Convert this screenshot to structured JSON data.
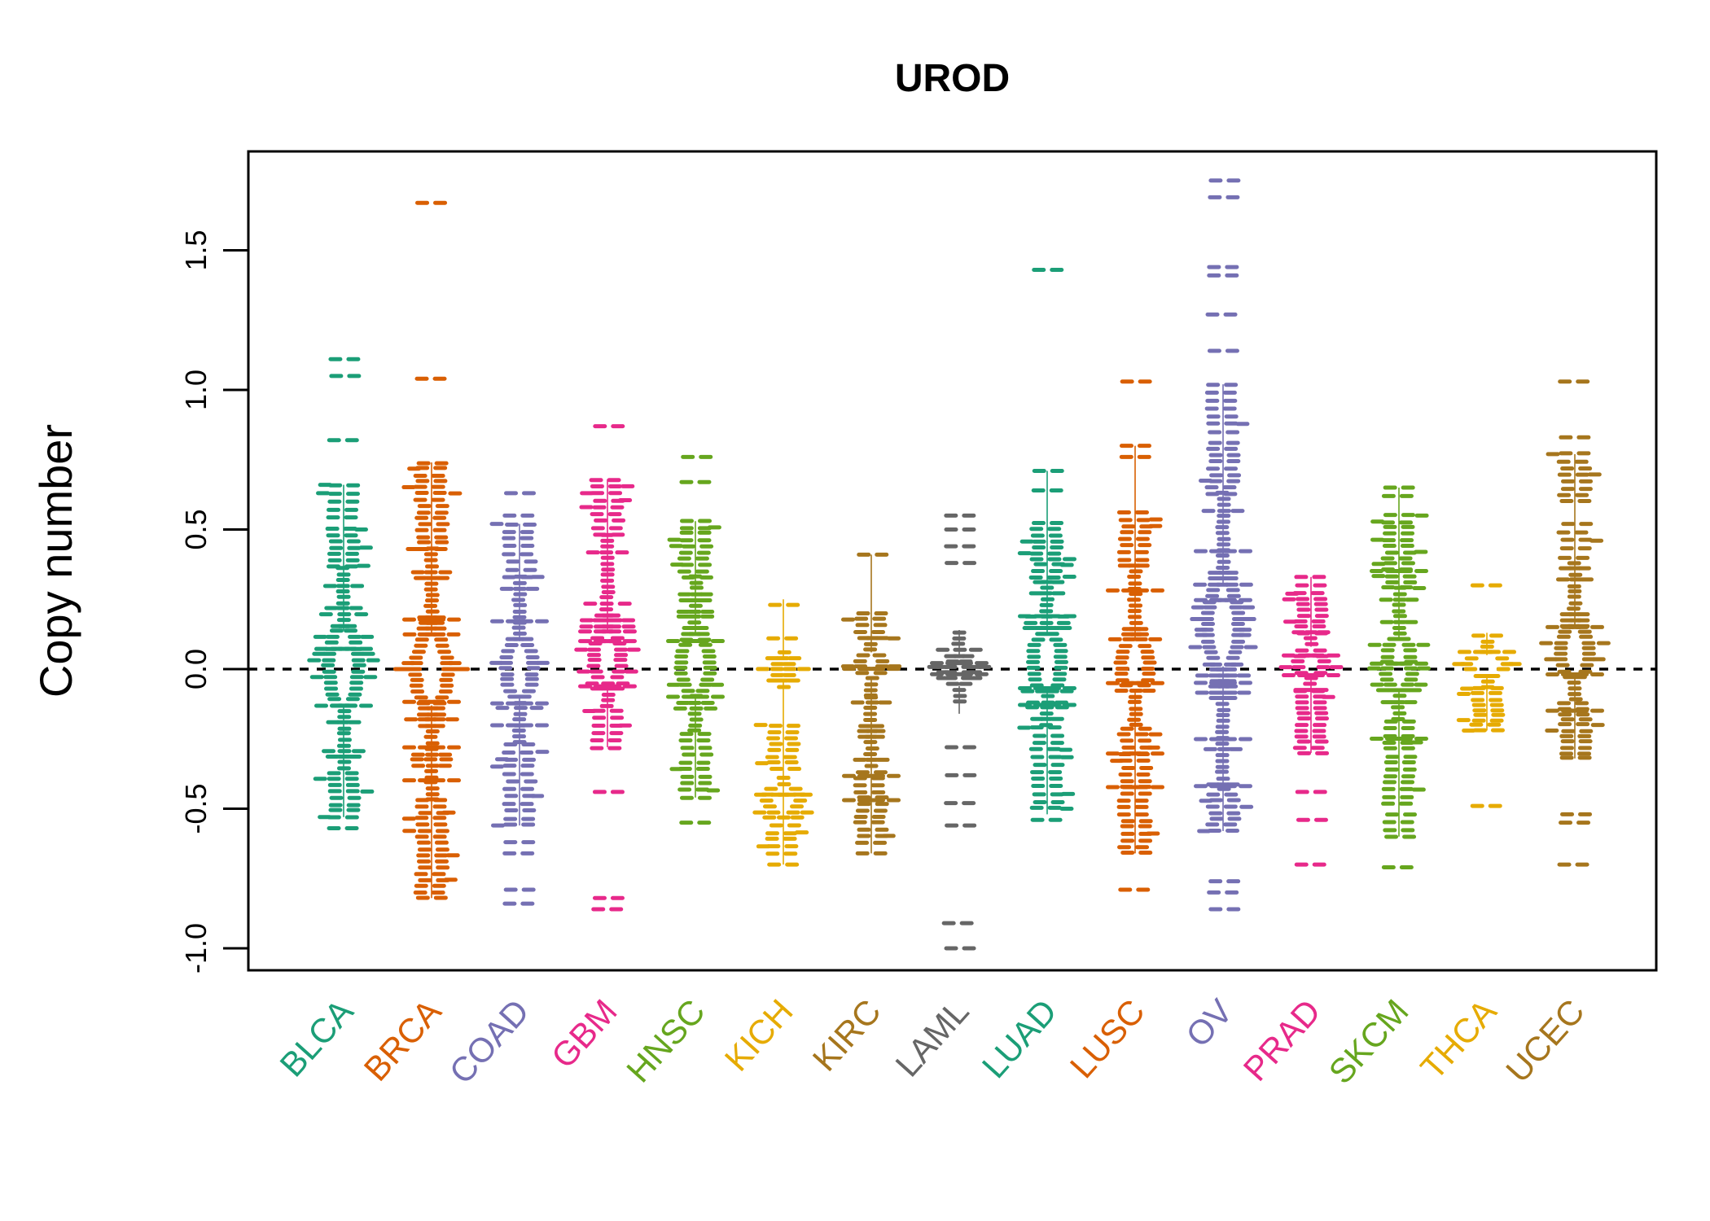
{
  "title": "UROD",
  "chart_data": {
    "type": "beeswarm",
    "title": "UROD",
    "ylabel": "Copy number",
    "xlabel": "",
    "grid": false,
    "legend": "none",
    "baseline": 0.0,
    "baseline_style": "dashed-black",
    "ylim": [
      -1.08,
      1.85
    ],
    "yticks": [
      {
        "value": -1.0,
        "label": "-1.0"
      },
      {
        "value": -0.5,
        "label": "-0.5"
      },
      {
        "value": 0.0,
        "label": "0.0"
      },
      {
        "value": 0.5,
        "label": "0.5"
      },
      {
        "value": 1.0,
        "label": "1.0"
      },
      {
        "value": 1.5,
        "label": "1.5"
      }
    ],
    "marker": "horizontal-dash",
    "palette_note": "Dark2 8-color palette recycled across 15 cohorts",
    "categories": [
      "BLCA",
      "BRCA",
      "COAD",
      "GBM",
      "HNSC",
      "KICH",
      "KIRC",
      "LAML",
      "LUAD",
      "LUSC",
      "OV",
      "PRAD",
      "SKCM",
      "THCA",
      "UCEC"
    ],
    "series": [
      {
        "label": "BLCA",
        "color": "#1B9E77",
        "outliers": [
          1.11,
          1.05,
          0.82,
          -0.57
        ],
        "tails": [
          [
            0.66,
            0.54,
            5
          ],
          [
            0.5,
            0.37,
            7
          ],
          [
            -0.37,
            -0.53,
            8
          ]
        ],
        "cores": [
          {
            "top": 0.36,
            "bottom": -0.36,
            "peak": 0.03,
            "maxW": 26,
            "lensTop": 0.14,
            "lensBottom": -0.13,
            "lensW": 14
          }
        ],
        "wideRows": [
          [
            0.07,
            42
          ],
          [
            -0.13,
            34
          ]
        ],
        "stem": [
          0.66,
          -0.53
        ]
      },
      {
        "label": "BRCA",
        "color": "#D95F02",
        "outliers": [
          1.67,
          1.04
        ],
        "tails": [
          [
            0.74,
            0.43,
            15
          ],
          [
            -0.47,
            -0.82,
            17
          ]
        ],
        "cores": [
          {
            "top": 0.43,
            "bottom": -0.47,
            "peak": 0.01,
            "maxW": 30,
            "lensTop": 0.12,
            "lensBottom": -0.13,
            "lensW": 15
          }
        ],
        "wideRows": [
          [
            0.18,
            40
          ],
          [
            -0.12,
            44
          ],
          [
            -0.28,
            40
          ],
          [
            -0.4,
            38
          ]
        ],
        "stem": [
          0.74,
          -0.82
        ]
      },
      {
        "label": "COAD",
        "color": "#7570B3",
        "outliers": [
          0.63,
          0.55,
          -0.62,
          -0.66,
          -0.79,
          -0.84
        ],
        "tails": [
          [
            0.52,
            0.33,
            8
          ],
          [
            -0.27,
            -0.56,
            12
          ]
        ],
        "cores": [
          {
            "top": 0.33,
            "bottom": -0.27,
            "peak": 0.0,
            "maxW": 22,
            "lensTop": 0.1,
            "lensBottom": -0.1,
            "lensW": 12
          }
        ],
        "wideRows": [
          [
            0.17,
            34
          ],
          [
            -0.12,
            36
          ],
          [
            -0.2,
            30
          ]
        ],
        "stem": [
          0.52,
          -0.56
        ]
      },
      {
        "label": "GBM",
        "color": "#E7298A",
        "outliers": [
          0.87,
          -0.44,
          -0.82,
          -0.86
        ],
        "tails": [
          [
            0.68,
            0.48,
            9
          ],
          [
            -0.15,
            -0.28,
            6
          ]
        ],
        "cores": [
          {
            "top": 0.48,
            "bottom": -0.15,
            "peak": 0.04,
            "maxW": 24,
            "lensTop": 0.13,
            "lensBottom": -0.05,
            "lensW": 13
          }
        ],
        "wideRows": [
          [
            0.1,
            36
          ],
          [
            -0.06,
            32
          ]
        ],
        "stem": [
          0.68,
          -0.28
        ]
      },
      {
        "label": "HNSC",
        "color": "#66A61E",
        "outliers": [
          0.76,
          0.67,
          -0.55
        ],
        "tails": [
          [
            0.53,
            0.33,
            10
          ],
          [
            -0.23,
            -0.46,
            10
          ]
        ],
        "cores": [
          {
            "top": 0.33,
            "bottom": -0.23,
            "peak": 0.03,
            "maxW": 26,
            "lensTop": 0.12,
            "lensBottom": -0.09,
            "lensW": 13
          }
        ],
        "wideRows": [
          [
            0.1,
            44
          ],
          [
            -0.1,
            38
          ]
        ],
        "stem": [
          0.53,
          -0.46
        ]
      },
      {
        "label": "KICH",
        "color": "#E6AB02",
        "outliers": [
          0.23,
          0.11,
          -0.7
        ],
        "tails": [
          [
            -0.2,
            -0.36,
            8
          ],
          [
            -0.56,
            -0.66,
            5
          ]
        ],
        "cores": [
          {
            "top": 0.06,
            "bottom": -0.07,
            "peak": 0.0,
            "maxW": 10,
            "lensTop": 0.04,
            "lensBottom": -0.04,
            "lensW": 5
          },
          {
            "top": -0.39,
            "bottom": -0.55,
            "peak": -0.46,
            "maxW": 24,
            "lensTop": -0.41,
            "lensBottom": -0.52,
            "lensW": 16
          }
        ],
        "wideRows": [
          [
            -0.45,
            28
          ]
        ],
        "stem": [
          0.25,
          -0.7
        ]
      },
      {
        "label": "KIRC",
        "color": "#A6761D",
        "outliers": [
          0.41,
          -0.66
        ],
        "tails": [
          [
            0.2,
            0.11,
            5
          ],
          [
            -0.37,
            -0.62,
            12
          ]
        ],
        "cores": [
          {
            "top": 0.11,
            "bottom": -0.1,
            "peak": 0.02,
            "maxW": 18,
            "lensTop": 0.06,
            "lensBottom": -0.03,
            "lensW": 10
          },
          {
            "top": -0.1,
            "bottom": -0.36,
            "peak": -0.22,
            "maxW": 14,
            "lensTop": 0,
            "lensBottom": 0,
            "lensW": 0
          }
        ],
        "wideRows": [
          [
            0.0,
            40
          ],
          [
            -0.38,
            42
          ],
          [
            -0.47,
            30
          ]
        ],
        "stem": [
          0.41,
          -0.66
        ]
      },
      {
        "label": "LAML",
        "color": "#666666",
        "outliers": [
          0.55,
          0.5,
          0.44,
          0.38,
          -0.28,
          -0.38,
          -0.48,
          -0.56,
          -0.91,
          -1.0
        ],
        "tails": [],
        "cores": [
          {
            "top": 0.13,
            "bottom": -0.13,
            "peak": -0.01,
            "maxW": 30,
            "lensTop": 0.04,
            "lensBottom": -0.06,
            "lensW": 7
          }
        ],
        "wideRows": [
          [
            -0.02,
            44
          ],
          [
            0.02,
            36
          ]
        ],
        "stem": [
          0.14,
          -0.16
        ]
      },
      {
        "label": "LUAD",
        "color": "#1B9E77",
        "outliers": [
          1.43,
          0.71,
          0.64,
          -0.54
        ],
        "tails": [
          [
            0.52,
            0.31,
            11
          ],
          [
            -0.21,
            -0.5,
            12
          ]
        ],
        "cores": [
          {
            "top": 0.31,
            "bottom": -0.21,
            "peak": 0.04,
            "maxW": 25,
            "lensTop": 0.13,
            "lensBottom": -0.08,
            "lensW": 13
          }
        ],
        "wideRows": [
          [
            0.19,
            38
          ],
          [
            -0.07,
            40
          ],
          [
            -0.13,
            34
          ]
        ],
        "stem": [
          0.71,
          -0.52
        ]
      },
      {
        "label": "LUSC",
        "color": "#D95F02",
        "outliers": [
          1.03,
          0.8,
          0.76,
          -0.79
        ],
        "tails": [
          [
            0.56,
            0.37,
            9
          ],
          [
            -0.21,
            -0.66,
            20
          ]
        ],
        "cores": [
          {
            "top": 0.37,
            "bottom": -0.21,
            "peak": 0.02,
            "maxW": 25,
            "lensTop": 0.11,
            "lensBottom": -0.08,
            "lensW": 13
          }
        ],
        "wideRows": [
          [
            0.28,
            36
          ],
          [
            -0.05,
            40
          ],
          [
            -0.3,
            36
          ],
          [
            -0.42,
            40
          ]
        ],
        "stem": [
          0.8,
          -0.66
        ]
      },
      {
        "label": "OV",
        "color": "#7570B3",
        "outliers": [
          1.75,
          1.69,
          1.44,
          1.41,
          1.27,
          1.14,
          -0.76,
          -0.8,
          -0.86
        ],
        "tails": [
          [
            1.02,
            0.85,
            7
          ],
          [
            0.81,
            0.63,
            9
          ],
          [
            -0.45,
            -0.58,
            7
          ]
        ],
        "cores": [
          {
            "top": 0.63,
            "bottom": -0.44,
            "peak": 0.14,
            "maxW": 30,
            "lensTop": 0.3,
            "lensBottom": 0.01,
            "lensW": 15
          }
        ],
        "wideRows": [
          [
            0.42,
            40
          ],
          [
            0.25,
            44
          ],
          [
            -0.05,
            40
          ],
          [
            -0.25,
            36
          ],
          [
            -0.42,
            44
          ]
        ],
        "stem": [
          1.02,
          -0.58
        ]
      },
      {
        "label": "PRAD",
        "color": "#E7298A",
        "outliers": [
          0.33,
          0.3,
          -0.44,
          -0.54,
          -0.7
        ],
        "tails": [
          [
            0.27,
            0.13,
            8
          ],
          [
            -0.08,
            -0.3,
            12
          ]
        ],
        "cores": [
          {
            "top": 0.13,
            "bottom": -0.08,
            "peak": 0.02,
            "maxW": 22,
            "lensTop": 0.08,
            "lensBottom": -0.03,
            "lensW": 12
          }
        ],
        "wideRows": [
          [
            0.05,
            40
          ],
          [
            -0.02,
            38
          ]
        ],
        "stem": [
          0.33,
          -0.3
        ]
      },
      {
        "label": "SKCM",
        "color": "#66A61E",
        "outliers": [
          0.65,
          0.62,
          -0.71
        ],
        "tails": [
          [
            0.55,
            0.29,
            13
          ],
          [
            -0.19,
            -0.48,
            13
          ],
          [
            -0.52,
            -0.6,
            4
          ]
        ],
        "cores": [
          {
            "top": 0.29,
            "bottom": -0.19,
            "peak": 0.02,
            "maxW": 24,
            "lensTop": 0.11,
            "lensBottom": -0.08,
            "lensW": 12
          }
        ],
        "wideRows": [
          [
            0.02,
            46
          ],
          [
            0.35,
            32
          ],
          [
            -0.25,
            36
          ]
        ],
        "stem": [
          0.65,
          -0.6
        ]
      },
      {
        "label": "THCA",
        "color": "#E6AB02",
        "outliers": [
          0.3,
          0.12,
          -0.49
        ],
        "tails": [
          [
            -0.07,
            -0.22,
            9
          ]
        ],
        "cores": [
          {
            "top": 0.1,
            "bottom": -0.07,
            "peak": 0.01,
            "maxW": 42,
            "lensTop": 0.05,
            "lensBottom": -0.02,
            "lensW": 20
          }
        ],
        "wideRows": [
          [
            0.06,
            30
          ]
        ],
        "stem": [
          0.13,
          -0.22
        ]
      },
      {
        "label": "UCEC",
        "color": "#A6761D",
        "outliers": [
          1.03,
          0.83,
          -0.52,
          -0.55,
          -0.7
        ],
        "tails": [
          [
            0.77,
            0.6,
            8
          ],
          [
            0.52,
            0.4,
            5
          ],
          [
            -0.12,
            -0.32,
            11
          ]
        ],
        "cores": [
          {
            "top": 0.38,
            "bottom": -0.12,
            "peak": 0.08,
            "maxW": 26,
            "lensTop": 0.15,
            "lensBottom": -0.03,
            "lensW": 13
          }
        ],
        "wideRows": [
          [
            0.15,
            40
          ],
          [
            -0.02,
            38
          ],
          [
            -0.15,
            36
          ]
        ],
        "stem": [
          0.77,
          -0.32
        ]
      }
    ]
  }
}
